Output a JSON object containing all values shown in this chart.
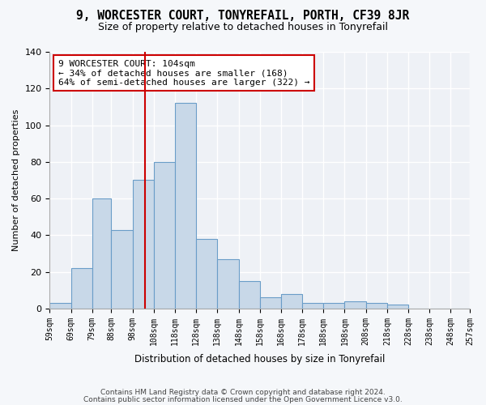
{
  "title": "9, WORCESTER COURT, TONYREFAIL, PORTH, CF39 8JR",
  "subtitle": "Size of property relative to detached houses in Tonyrefail",
  "xlabel": "Distribution of detached houses by size in Tonyrefail",
  "ylabel": "Number of detached properties",
  "bin_edges": [
    59,
    69,
    79,
    88,
    98,
    108,
    118,
    128,
    138,
    148,
    158,
    168,
    178,
    188,
    198,
    208,
    218,
    228,
    238,
    248,
    257
  ],
  "bins_counts": [
    3,
    22,
    60,
    43,
    70,
    80,
    112,
    38,
    27,
    15,
    6,
    8,
    3,
    3,
    4,
    3,
    2,
    0,
    0,
    0
  ],
  "bar_color": "#c8d8e8",
  "bar_edgecolor": "#6a9dc8",
  "property_size": 104,
  "annotation_text": "9 WORCESTER COURT: 104sqm\n← 34% of detached houses are smaller (168)\n64% of semi-detached houses are larger (322) →",
  "vline_color": "#cc0000",
  "box_edgecolor": "#cc0000",
  "ylim": [
    0,
    140
  ],
  "yticks": [
    0,
    20,
    40,
    60,
    80,
    100,
    120,
    140
  ],
  "footer1": "Contains HM Land Registry data © Crown copyright and database right 2024.",
  "footer2": "Contains public sector information licensed under the Open Government Licence v3.0.",
  "fig_bg_color": "#f5f7fa",
  "plot_bg_color": "#eef1f6"
}
